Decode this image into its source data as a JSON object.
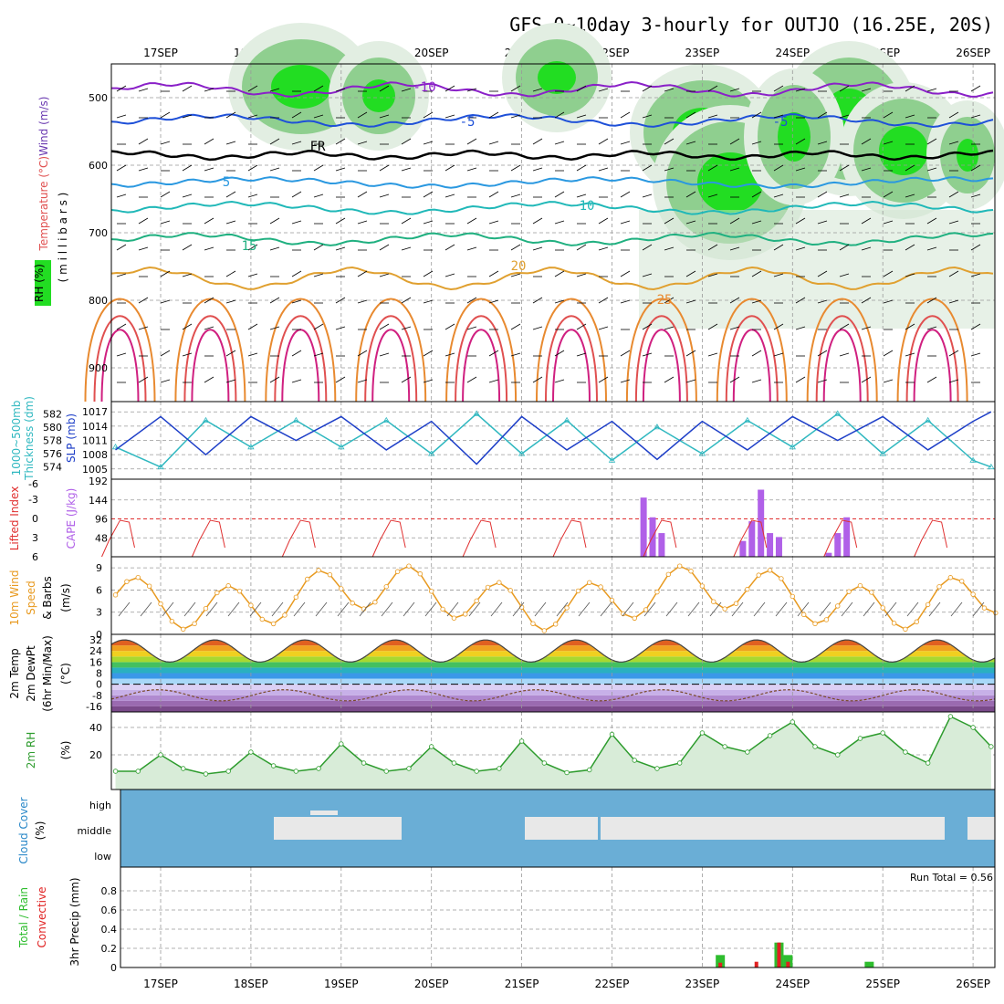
{
  "title": "GFS 0~10day 3-hourly for OUTJO (16.25E, 20S)",
  "dates": [
    "17SEP",
    "18SEP",
    "19SEP",
    "20SEP",
    "21SEP",
    "22SEP",
    "23SEP",
    "24SEP",
    "25SEP",
    "26SEP"
  ],
  "panels": {
    "upper": {
      "labels": [
        "RH (%)",
        "Temperature (°C)",
        "Wind (m/s)",
        "( m i l l i b a r s )"
      ],
      "ticks": [
        "500",
        "600",
        "700",
        "800",
        "900"
      ],
      "contour_labels": [
        "-10",
        "-5",
        "FR",
        "5",
        "10",
        "15",
        "20",
        "25",
        "-5"
      ]
    },
    "slp": {
      "left_labels": [
        "1000~500mb",
        "Thickness (dm)"
      ],
      "right_label": "SLP (mb)",
      "thickness_ticks": [
        "582",
        "580",
        "578",
        "576",
        "574"
      ],
      "slp_ticks": [
        "1017",
        "1014",
        "1011",
        "1008",
        "1005"
      ]
    },
    "cape": {
      "left_label": "Lifted Index",
      "right_label": "CAPE (J/kg)",
      "li_ticks": [
        "-6",
        "-3",
        "0",
        "3",
        "6"
      ],
      "cape_ticks": [
        "192",
        "144",
        "96",
        "48"
      ]
    },
    "wind": {
      "labels": [
        "10m Wind",
        "Speed",
        "& Barbs",
        "(m/s)"
      ],
      "ticks": [
        "9",
        "6",
        "3",
        "0"
      ]
    },
    "temp": {
      "labels": [
        "2m Temp",
        "2m DewPt",
        "(6hr Min/Max)",
        "(°C)"
      ],
      "ticks": [
        "32",
        "24",
        "16",
        "8",
        "0",
        "-8",
        "-16"
      ]
    },
    "rh": {
      "labels": [
        "2m RH",
        "(%)"
      ],
      "ticks": [
        "40",
        "20"
      ]
    },
    "cloud": {
      "labels": [
        "Cloud Cover",
        "(%)"
      ],
      "ticks": [
        "high",
        "middle",
        "low"
      ]
    },
    "precip": {
      "labels": [
        "3hr Precip (mm)",
        "Total / Rain",
        "Convective"
      ],
      "ticks": [
        "0.8",
        "0.6",
        "0.4",
        "0.2",
        "0"
      ],
      "run_total": "Run Total = 0.56"
    }
  },
  "colors": {
    "slp": "#1e3fc8",
    "thickness": "#30b8c0",
    "cape": "#b060e8",
    "li": "#e03030",
    "wind": "#e89a20",
    "rh_fill": "#9fd49f",
    "rh_line": "#2e9c2e",
    "cloud_bg": "#6aaed6",
    "cloud_fill": "#e8e8e8",
    "precip_total": "#2ebd2e",
    "precip_conv": "#e02020",
    "green": "#22dd22"
  },
  "chart_data": [
    {
      "name": "slp",
      "type": "line",
      "x_days": [
        16.5,
        17,
        17.5,
        18,
        18.5,
        19,
        19.5,
        20,
        20.5,
        21,
        21.5,
        22,
        22.5,
        23,
        23.5,
        24,
        24.5,
        25,
        25.5,
        26,
        26.2
      ],
      "series": [
        {
          "name": "SLP (mb)",
          "values": [
            1009,
            1016,
            1008,
            1016,
            1011,
            1016,
            1009,
            1015,
            1006,
            1016,
            1009,
            1015,
            1007,
            1015,
            1009,
            1016,
            1011,
            1016,
            1009,
            1015,
            1017
          ]
        },
        {
          "name": "1000~500mb Thickness (dm)",
          "values": [
            577,
            574,
            581,
            577,
            581,
            577,
            581,
            576,
            582,
            576,
            581,
            575,
            580,
            576,
            581,
            577,
            582,
            576,
            581,
            575,
            574
          ]
        }
      ]
    },
    {
      "name": "cape",
      "type": "bar",
      "x_days": [
        22.35,
        22.45,
        22.55,
        23.45,
        23.55,
        23.65,
        23.75,
        23.85,
        24.4,
        24.5,
        24.6
      ],
      "values": [
        150,
        100,
        60,
        40,
        90,
        170,
        60,
        50,
        10,
        60,
        100
      ]
    },
    {
      "name": "lifted_index",
      "type": "line",
      "ylim": [
        6,
        -6
      ]
    },
    {
      "name": "wind_speed",
      "type": "line",
      "ylim": [
        0,
        10
      ]
    },
    {
      "name": "2m_temp",
      "type": "area",
      "ylim": [
        -20,
        36
      ],
      "daily_max": 32,
      "daily_min": 16
    },
    {
      "name": "2m_rh",
      "type": "area",
      "x_days": [
        16.5,
        16.75,
        17,
        17.25,
        17.5,
        17.75,
        18,
        18.25,
        18.5,
        18.75,
        19,
        19.25,
        19.5,
        19.75,
        20,
        20.25,
        20.5,
        20.75,
        21,
        21.25,
        21.5,
        21.75,
        22,
        22.25,
        22.5,
        22.75,
        23,
        23.25,
        23.5,
        23.75,
        24,
        24.25,
        24.5,
        24.75,
        25,
        25.25,
        25.5,
        25.75,
        26,
        26.2
      ],
      "values": [
        8,
        8,
        20,
        10,
        6,
        8,
        22,
        12,
        8,
        10,
        28,
        14,
        8,
        10,
        26,
        14,
        8,
        10,
        30,
        14,
        7,
        9,
        35,
        16,
        10,
        14,
        36,
        26,
        22,
        34,
        44,
        26,
        20,
        32,
        36,
        22,
        14,
        48,
        40,
        26
      ],
      "ylim": [
        0,
        50
      ]
    },
    {
      "name": "cloud_cover",
      "type": "area",
      "ticks": [
        "high",
        "middle",
        "low"
      ]
    },
    {
      "name": "3hr_precip",
      "type": "bar",
      "ylim": [
        0,
        1
      ],
      "x_days": [
        23.2,
        23.6,
        23.85,
        23.95,
        24.85
      ],
      "total": [
        0.13,
        0.0,
        0.26,
        0.13,
        0.06
      ],
      "convective": [
        0.05,
        0.06,
        0.26,
        0.06,
        0.0
      ],
      "run_total": 0.56
    }
  ]
}
